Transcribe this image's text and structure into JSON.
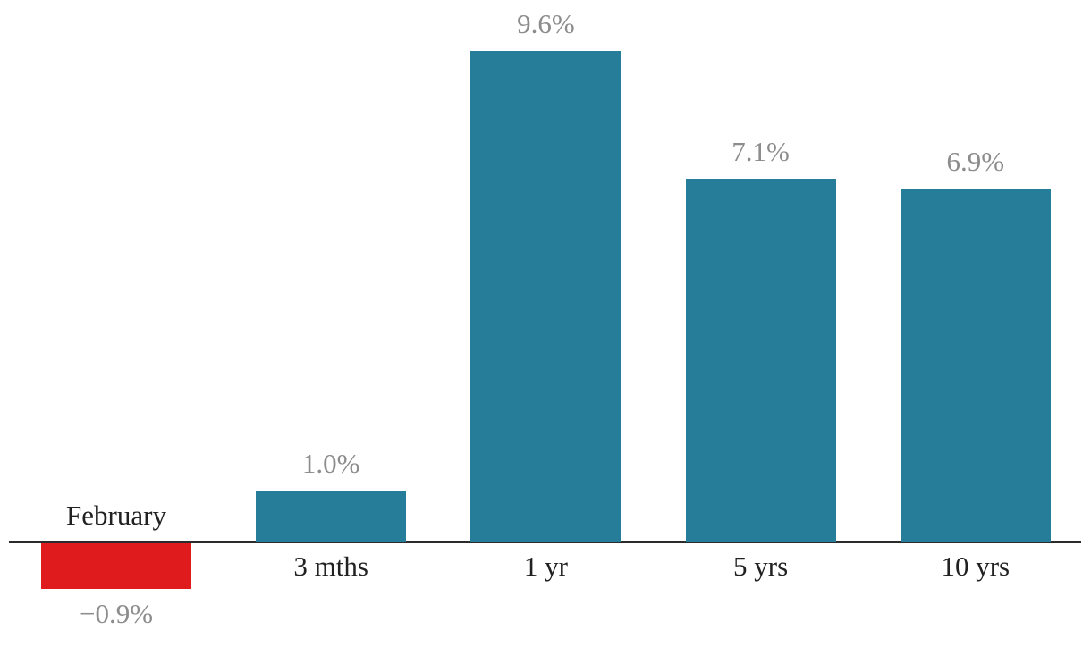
{
  "chart_data": {
    "type": "bar",
    "title": "",
    "xlabel": "",
    "ylabel": "",
    "categories": [
      "February",
      "3 mths",
      "1 yr",
      "5 yrs",
      "10 yrs"
    ],
    "values": [
      -0.9,
      1.0,
      9.6,
      7.1,
      6.9
    ],
    "value_labels": [
      "−0.9%",
      "1.0%",
      "9.6%",
      "7.1%",
      "6.9%"
    ],
    "ylim": [
      -2.0,
      10.6
    ],
    "grid": false,
    "legend": "none",
    "axis": "x-baseline-only",
    "colors": {
      "positive_bar": "#267d99",
      "negative_bar": "#e01b1d",
      "value_label": "#8c8c8c",
      "category_label": "#212121",
      "axis_line": "#2b2b2b",
      "background": "#ffffff"
    }
  }
}
